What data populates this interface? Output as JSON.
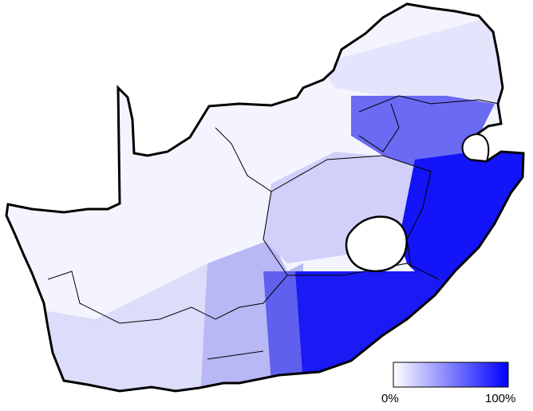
{
  "legend": {
    "labels": [
      "0%",
      "100%"
    ],
    "colors": [
      "#ffffff",
      "#0000ff"
    ]
  }
}
